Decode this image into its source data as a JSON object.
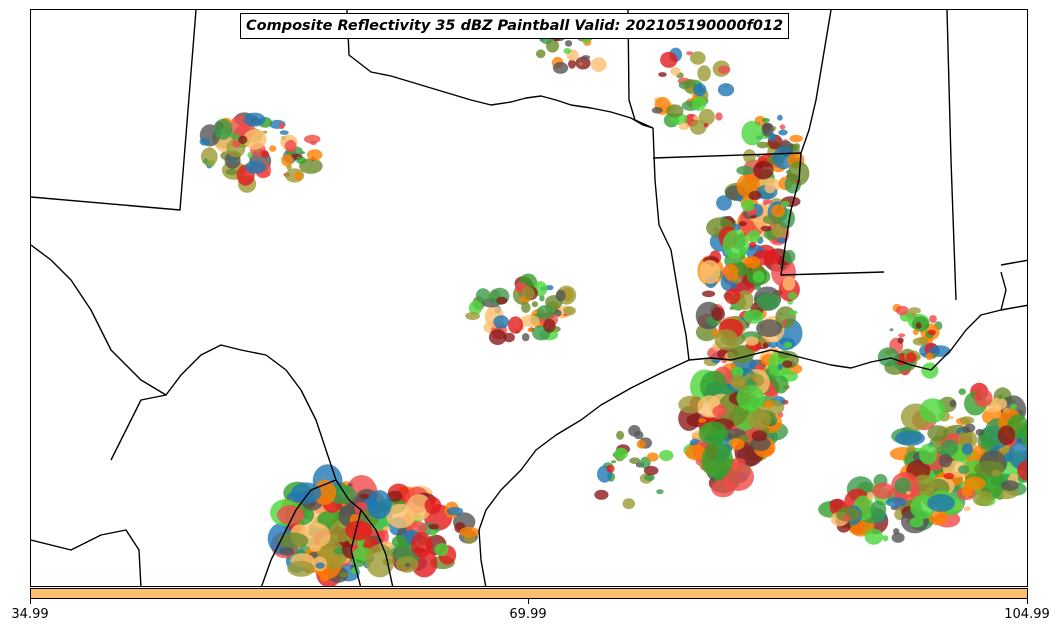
{
  "title": "Composite Reflectivity 35 dBZ Paintball Valid: 202105190000f012",
  "colorbar": {
    "color": "#fdbf6f",
    "ticks": [
      "34.99",
      "69.99",
      "104.99"
    ]
  },
  "member_colors": [
    "#e31a1c",
    "#ff7f00",
    "#33a02c",
    "#1f78b4",
    "#9a9a33",
    "#8b1a1a",
    "#4bd63c",
    "#f34a4a",
    "#fdbf6f",
    "#6a8a2a",
    "#555555",
    "#3a9a4a"
  ],
  "map": {
    "features": [
      "state-boundaries",
      "coastline",
      "country-border"
    ]
  }
}
